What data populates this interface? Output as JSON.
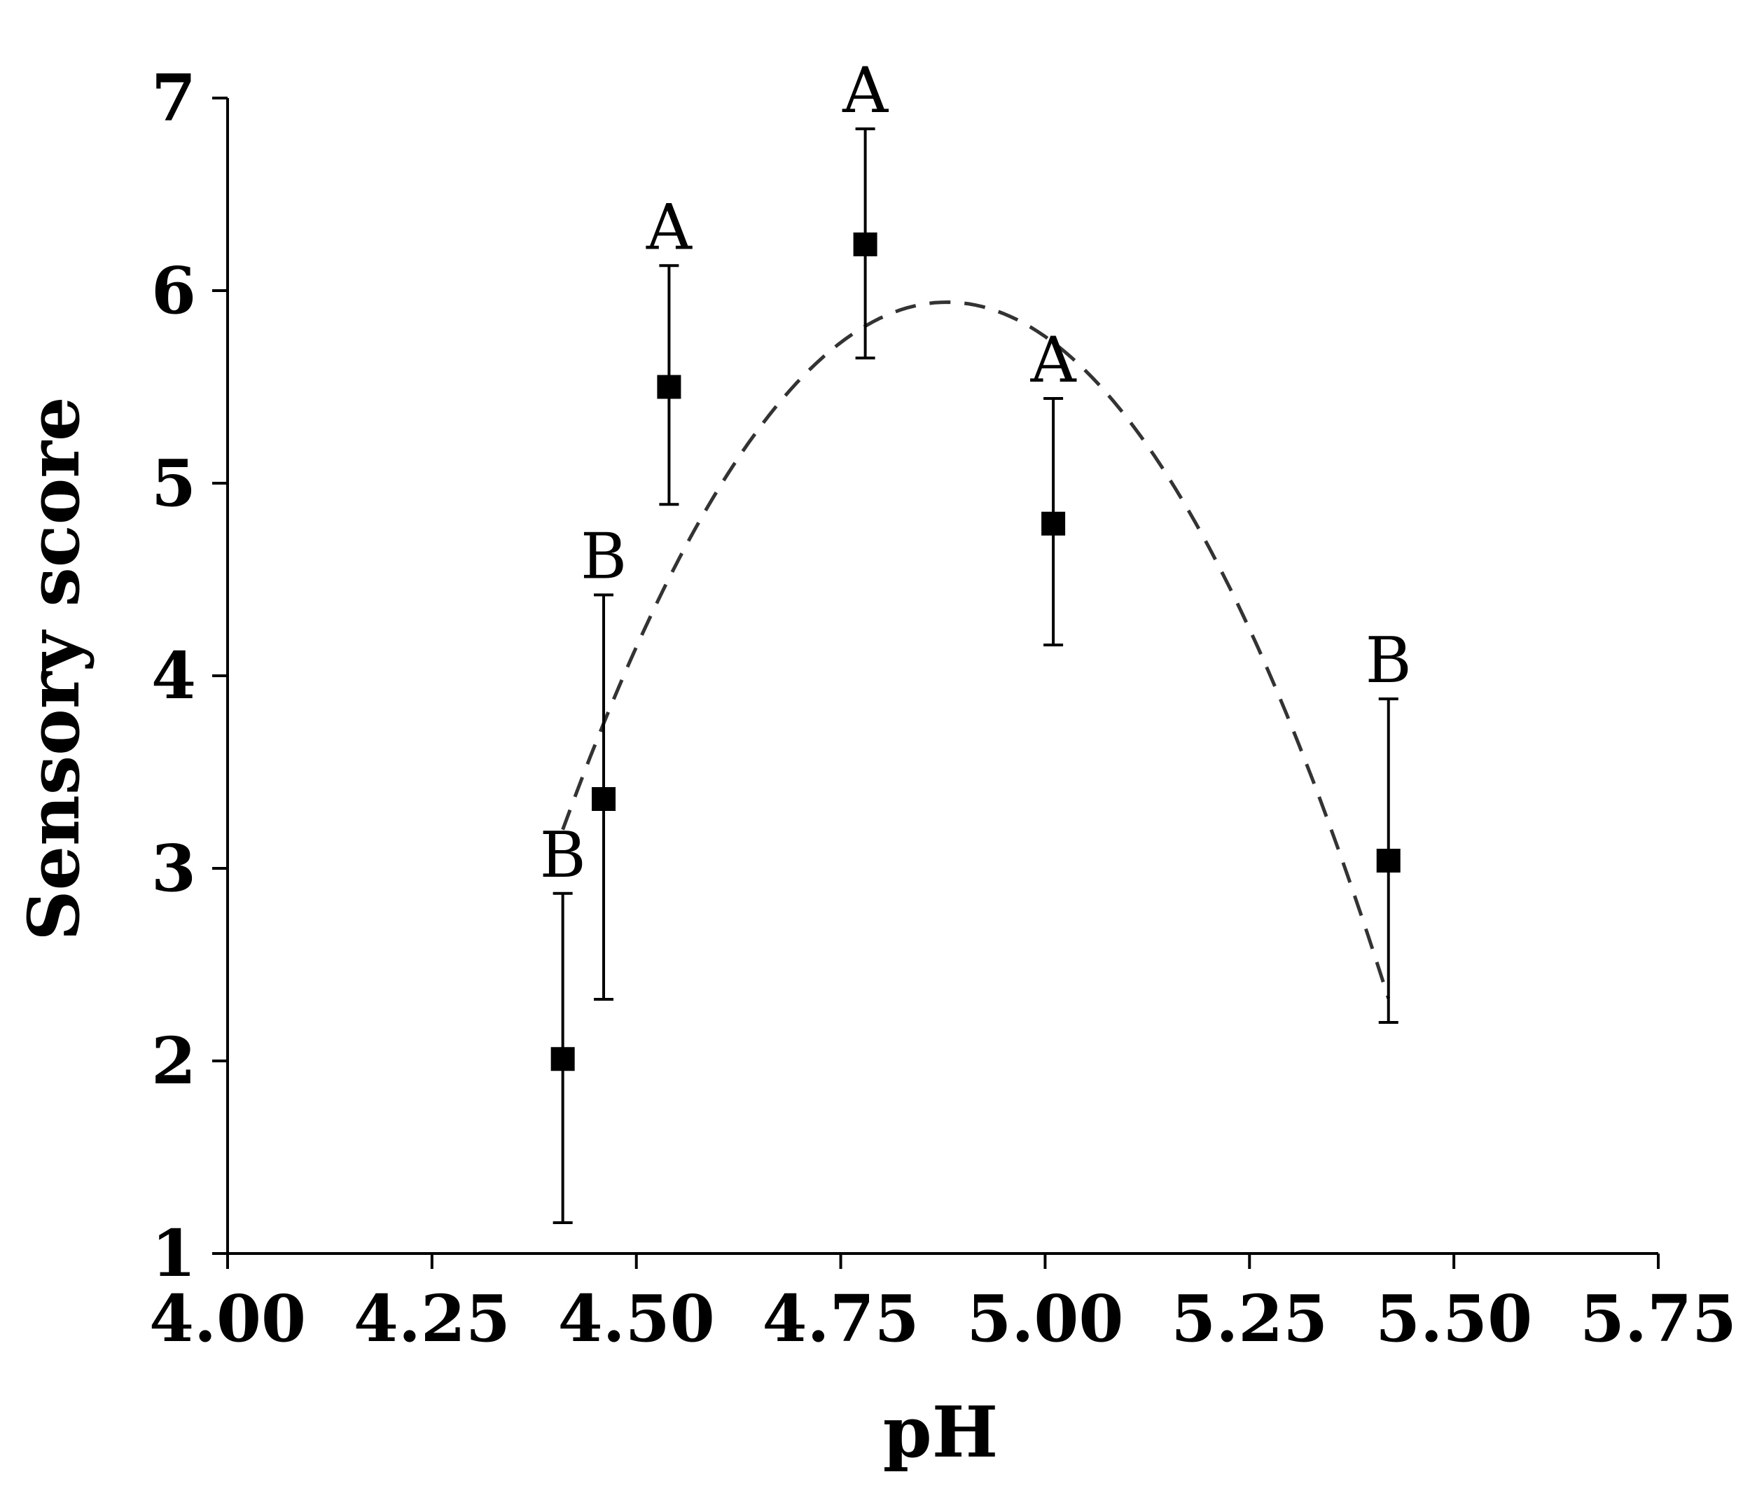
{
  "chart_data": {
    "type": "scatter",
    "title": "",
    "xlabel": "pH",
    "ylabel": "Sensory score",
    "xlim": [
      4.0,
      5.75
    ],
    "ylim": [
      1,
      7
    ],
    "x_ticks": [
      "4.00",
      "4.25",
      "4.50",
      "4.75",
      "5.00",
      "5.25",
      "5.50",
      "5.75"
    ],
    "y_ticks": [
      "1",
      "2",
      "3",
      "4",
      "5",
      "6",
      "7"
    ],
    "grid": false,
    "legend": null,
    "series": [
      {
        "name": "Sensory score",
        "marker": "square",
        "color": "#000000",
        "points": [
          {
            "x": 4.41,
            "y": 2.01,
            "err_low": 1.16,
            "err_high": 2.87,
            "label": "B"
          },
          {
            "x": 4.46,
            "y": 3.36,
            "err_low": 2.32,
            "err_high": 4.42,
            "label": "B"
          },
          {
            "x": 4.54,
            "y": 5.5,
            "err_low": 4.89,
            "err_high": 6.13,
            "label": "A"
          },
          {
            "x": 4.78,
            "y": 6.24,
            "err_low": 5.65,
            "err_high": 6.84,
            "label": "A"
          },
          {
            "x": 5.01,
            "y": 4.79,
            "err_low": 4.16,
            "err_high": 5.44,
            "label": "A"
          },
          {
            "x": 5.42,
            "y": 3.04,
            "err_low": 2.2,
            "err_high": 3.88,
            "label": "B"
          }
        ]
      }
    ],
    "fit_curve": {
      "style": "dashed",
      "color": "#333333",
      "kind": "quadratic",
      "vertex_x": 4.88,
      "vertex_y": 5.94,
      "curvature": 12.4,
      "x_start": 4.41,
      "x_end": 5.42
    }
  }
}
